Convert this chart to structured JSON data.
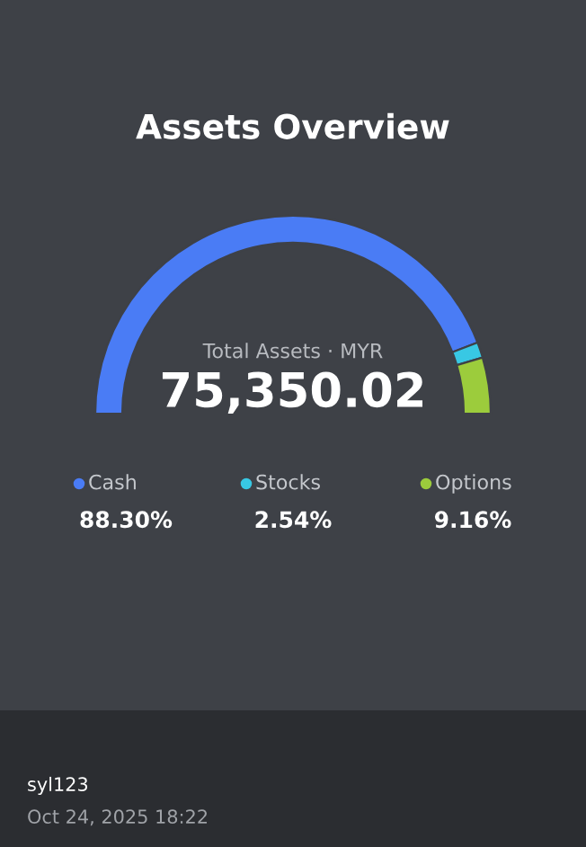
{
  "chart_data": {
    "type": "donut",
    "title": "Assets Overview",
    "categories": [
      "Cash",
      "Stocks",
      "Options"
    ],
    "values": [
      88.3,
      2.54,
      9.16
    ],
    "colors": [
      "#4a7cf5",
      "#38c8e4",
      "#9ccc3c"
    ],
    "value_labels": [
      "88.30%",
      "2.54%",
      "9.16%"
    ],
    "legend": "bottom",
    "annotations": [
      "Total Assets · MYR",
      "75,350.02",
      "syl123",
      "Oct 24, 2025 18:22"
    ]
  }
}
